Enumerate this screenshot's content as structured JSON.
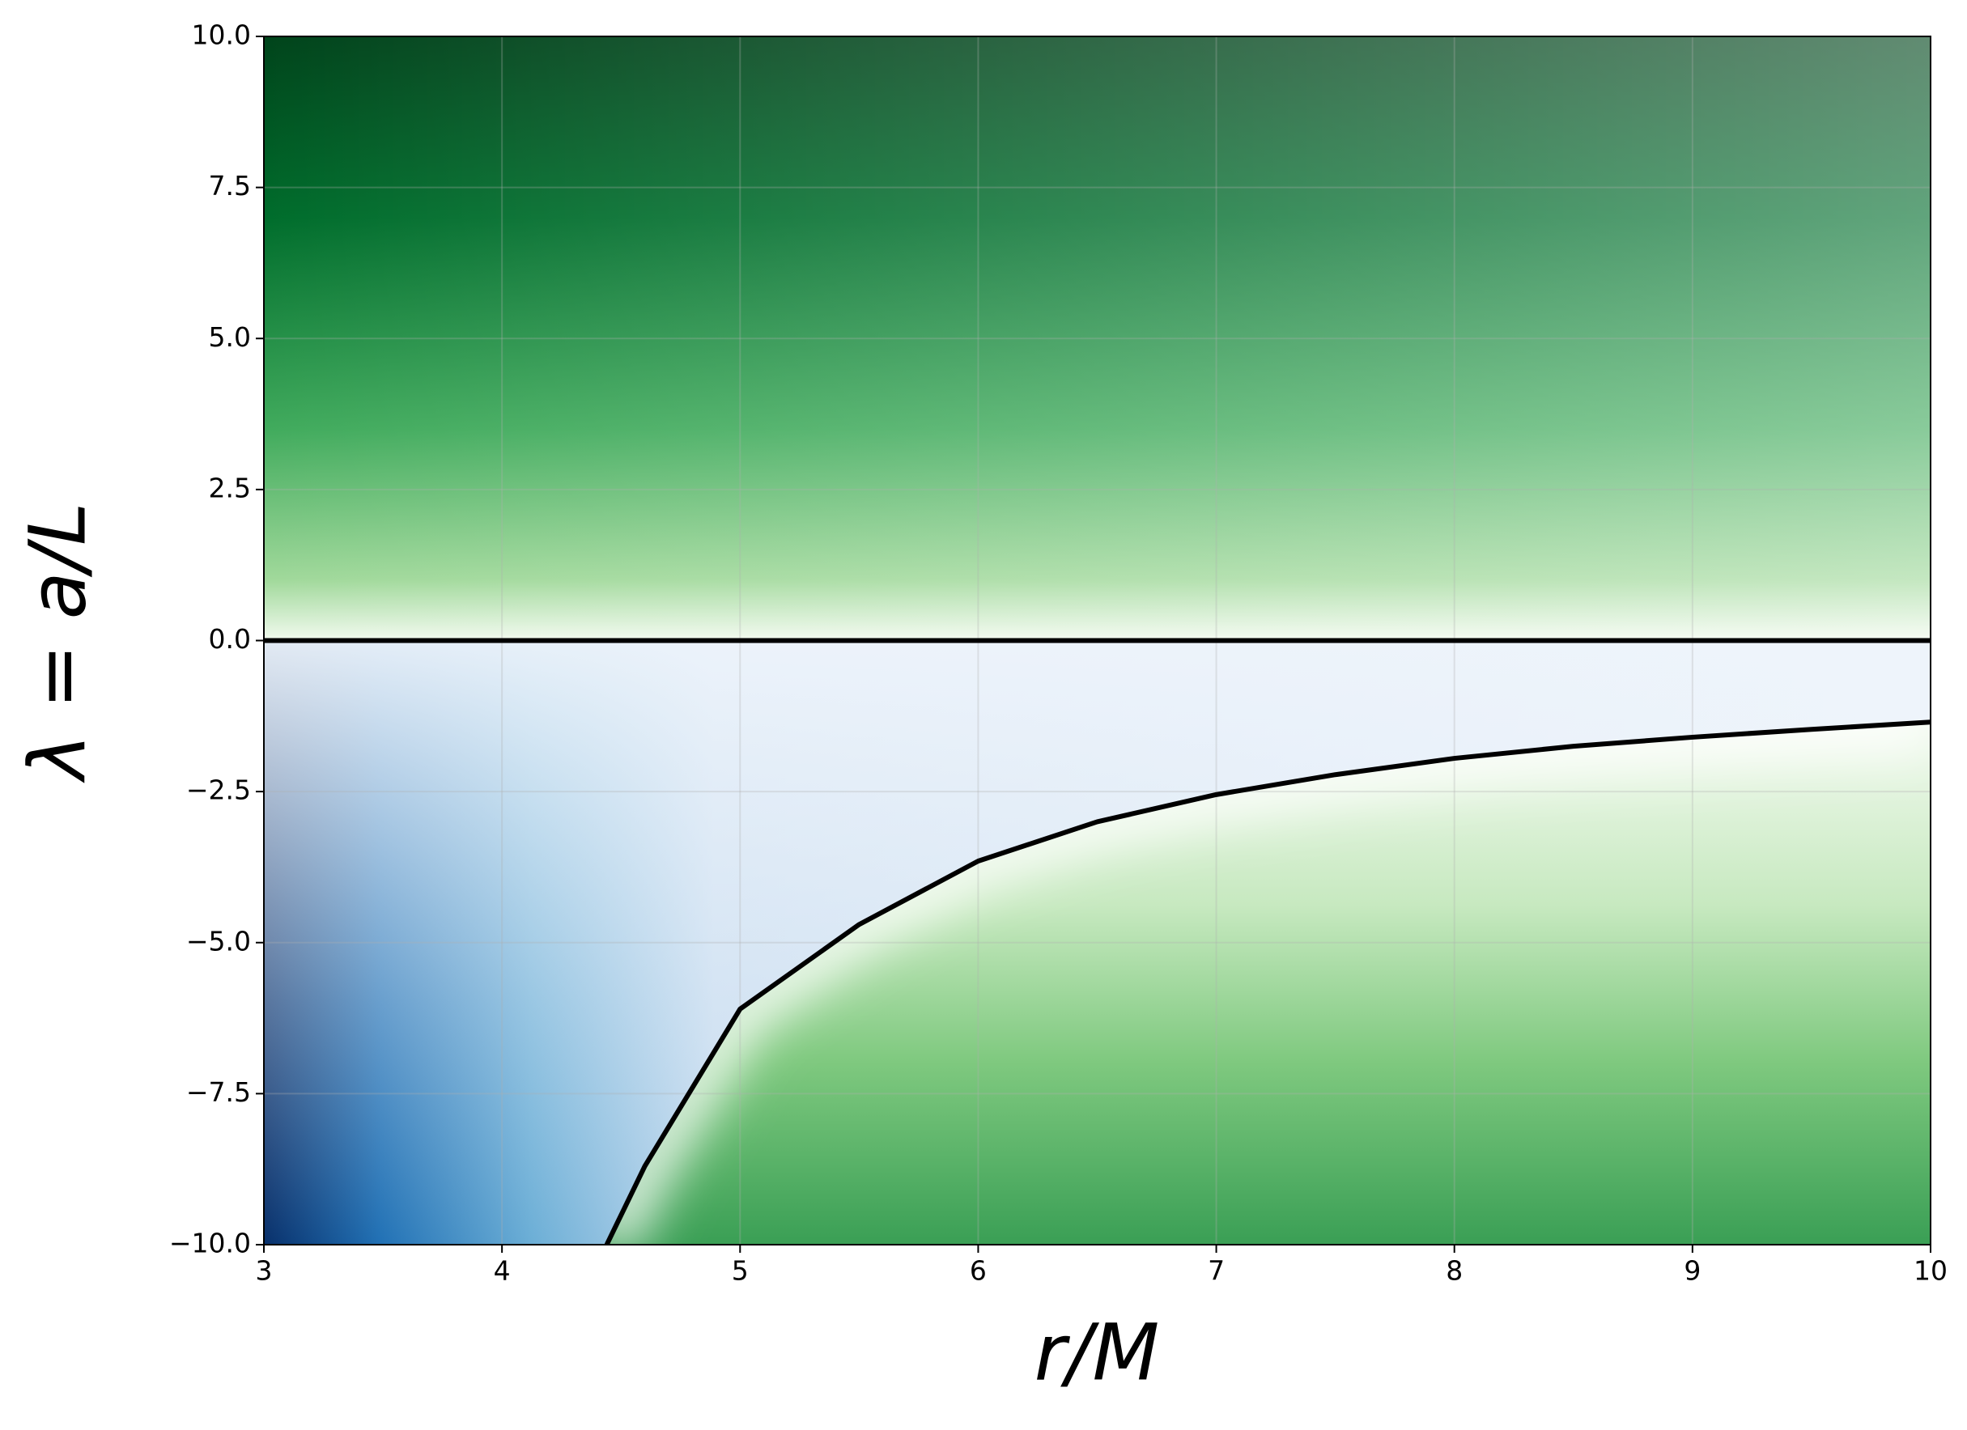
{
  "chart_data": {
    "type": "line",
    "x_label": "r/M",
    "y_label": "λ = a/L",
    "xlim": [
      3,
      10
    ],
    "ylim": [
      -10,
      10
    ],
    "xticks": [
      3,
      4,
      5,
      6,
      7,
      8,
      9,
      10
    ],
    "yticks": [
      {
        "value": -10,
        "label": "−10.0"
      },
      {
        "value": -7.5,
        "label": "−7.5"
      },
      {
        "value": -5,
        "label": "−5.0"
      },
      {
        "value": -2.5,
        "label": "−2.5"
      },
      {
        "value": 0,
        "label": "0.0"
      },
      {
        "value": 2.5,
        "label": "2.5"
      },
      {
        "value": 5,
        "label": "5.0"
      },
      {
        "value": 7.5,
        "label": "7.5"
      },
      {
        "value": 10,
        "label": "10.0"
      }
    ],
    "grid": true,
    "series": [
      {
        "color": "#000000",
        "x": [
          3,
          10
        ],
        "values": [
          0,
          0
        ]
      },
      {
        "color": "#000000",
        "x": [
          4.44,
          4.6,
          5,
          5.5,
          6,
          6.5,
          7,
          7.5,
          8,
          8.5,
          9,
          9.5,
          10
        ],
        "values": [
          -10,
          -8.7,
          -6.1,
          -4.7,
          -3.65,
          -3.0,
          -2.55,
          -2.22,
          -1.95,
          -1.75,
          -1.6,
          -1.47,
          -1.35
        ]
      }
    ]
  }
}
